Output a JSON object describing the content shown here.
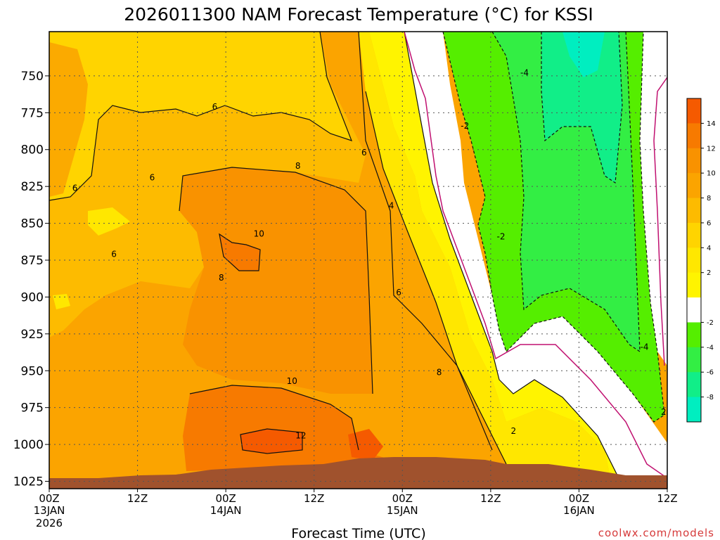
{
  "chart_data": {
    "type": "heatmap",
    "title": "2026011300 NAM Forecast Temperature (°C) for KSSI",
    "xlabel": "Forecast Time (UTC)",
    "ylabel": "",
    "credit": "coolwx.com/models",
    "y_ticks": [
      "750",
      "775",
      "800",
      "825",
      "850",
      "875",
      "900",
      "925",
      "950",
      "975",
      "1000",
      "1025"
    ],
    "y_values": [
      750,
      775,
      800,
      825,
      850,
      875,
      900,
      925,
      950,
      975,
      1000,
      1025
    ],
    "ylim": [
      1030,
      720
    ],
    "x_hours": [
      0,
      12,
      24,
      36,
      48,
      60,
      72,
      84
    ],
    "xlim": [
      0,
      84
    ],
    "x_ticks": [
      {
        "line1": "00Z",
        "line2": "13JAN",
        "line3": "2026"
      },
      {
        "line1": "12Z",
        "line2": "",
        "line3": ""
      },
      {
        "line1": "00Z",
        "line2": "14JAN",
        "line3": ""
      },
      {
        "line1": "12Z",
        "line2": "",
        "line3": ""
      },
      {
        "line1": "00Z",
        "line2": "15JAN",
        "line3": ""
      },
      {
        "line1": "12Z",
        "line2": "",
        "line3": ""
      },
      {
        "line1": "00Z",
        "line2": "16JAN",
        "line3": ""
      },
      {
        "line1": "12Z",
        "line2": "",
        "line3": ""
      }
    ],
    "colorbar": {
      "labels": [
        "14",
        "12",
        "10",
        "8",
        "6",
        "4",
        "2",
        "-2",
        "-4",
        "-6",
        "-8"
      ],
      "colors": [
        "#f55a00",
        "#f77a00",
        "#f99200",
        "#fba400",
        "#fdbb00",
        "#ffd400",
        "#ffe700",
        "#fff400",
        "#ffffff",
        "#55ee00",
        "#33ee44",
        "#11ee88",
        "#00eec0"
      ]
    },
    "contour_labels": [
      {
        "text": "6",
        "h": 22.5,
        "p": 771
      },
      {
        "text": "6",
        "h": 3.5,
        "p": 826
      },
      {
        "text": "6",
        "h": 14,
        "p": 819
      },
      {
        "text": "6",
        "h": 8.8,
        "p": 871
      },
      {
        "text": "8",
        "h": 33.8,
        "p": 811
      },
      {
        "text": "6",
        "h": 42.8,
        "p": 802
      },
      {
        "text": "4",
        "h": 46.5,
        "p": 838
      },
      {
        "text": "10",
        "h": 28.5,
        "p": 857
      },
      {
        "text": "8",
        "h": 23.4,
        "p": 887
      },
      {
        "text": "6",
        "h": 47.5,
        "p": 897
      },
      {
        "text": "10",
        "h": 33,
        "p": 957
      },
      {
        "text": "12",
        "h": 34.2,
        "p": 994
      },
      {
        "text": "8",
        "h": 53,
        "p": 951
      },
      {
        "text": "-2",
        "h": 56.5,
        "p": 784
      },
      {
        "text": "-2",
        "h": 61.4,
        "p": 859
      },
      {
        "text": "-4",
        "h": 64.6,
        "p": 748
      },
      {
        "text": "2",
        "h": 63.1,
        "p": 991
      },
      {
        "text": "-4",
        "h": 80.9,
        "p": 934
      },
      {
        "text": "2",
        "h": 83.5,
        "p": 978
      }
    ]
  }
}
